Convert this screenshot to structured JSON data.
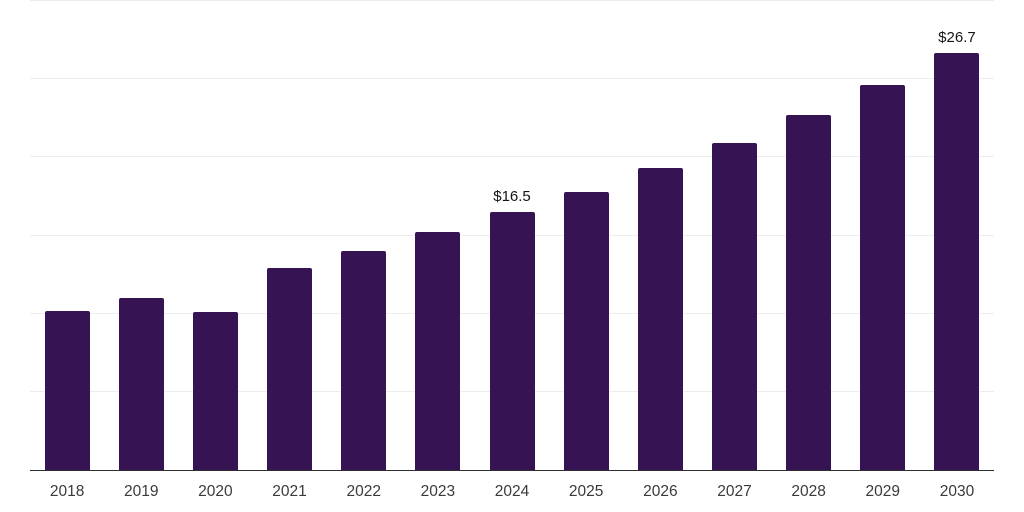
{
  "chart_data": {
    "type": "bar",
    "title": "",
    "xlabel": "",
    "ylabel": "",
    "categories": [
      "2018",
      "2019",
      "2020",
      "2021",
      "2022",
      "2023",
      "2024",
      "2025",
      "2026",
      "2027",
      "2028",
      "2029",
      "2030"
    ],
    "values": [
      10.2,
      11.0,
      10.1,
      12.9,
      14.0,
      15.2,
      16.5,
      17.8,
      19.3,
      20.9,
      22.7,
      24.6,
      26.7
    ],
    "data_labels": {
      "2024": "$16.5",
      "2030": "$26.7"
    },
    "ylim": [
      0,
      30
    ],
    "gridline_step": 5,
    "grid": true,
    "legend": false,
    "colors": {
      "bar": "#361352",
      "gridline": "#ededed",
      "axis_line": "#2e2e2e",
      "tick_label": "#3a3a3a",
      "data_label": "#141414",
      "background": "#ffffff"
    }
  }
}
